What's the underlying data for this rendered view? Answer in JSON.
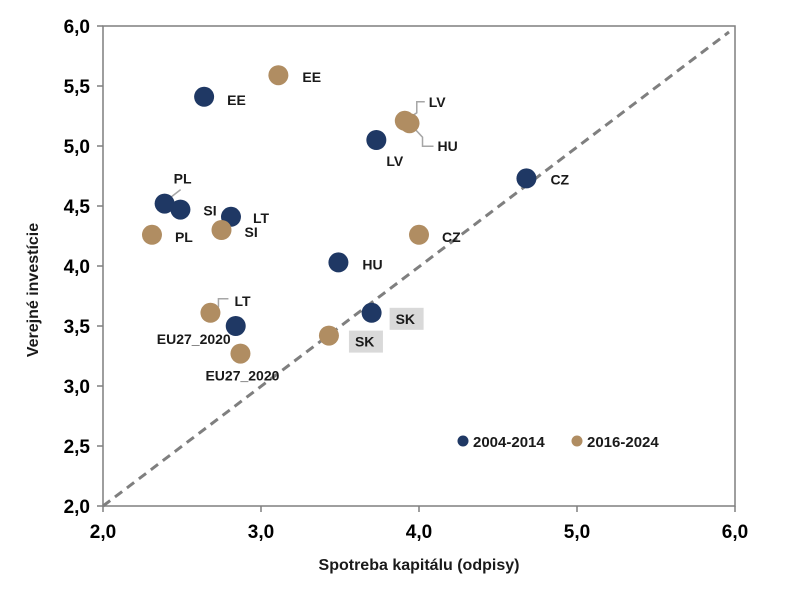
{
  "chart_data": {
    "type": "scatter",
    "xlabel": "Spotreba kapitálu (odpisy)",
    "ylabel": "Verejné investície",
    "xlim": [
      2.0,
      6.0
    ],
    "ylim": [
      2.0,
      6.0
    ],
    "x_ticks": [
      "2,0",
      "3,0",
      "4,0",
      "5,0",
      "6,0"
    ],
    "y_ticks": [
      "2,0",
      "2,5",
      "3,0",
      "3,5",
      "4,0",
      "4,5",
      "5,0",
      "5,5",
      "6,0"
    ],
    "reference_line": {
      "type": "diagonal",
      "from": [
        2.0,
        2.0
      ],
      "to": [
        6.0,
        6.0
      ],
      "style": "dashed"
    },
    "legend_position": "bottom-right",
    "series": [
      {
        "name": "2004-2014",
        "color": "#1f3864",
        "points": [
          {
            "label": "EE",
            "x": 2.64,
            "y": 5.41
          },
          {
            "label": "LV",
            "x": 3.73,
            "y": 5.05
          },
          {
            "label": "CZ",
            "x": 4.68,
            "y": 4.73
          },
          {
            "label": "PL",
            "x": 2.39,
            "y": 4.52
          },
          {
            "label": "SI",
            "x": 2.49,
            "y": 4.47
          },
          {
            "label": "LT",
            "x": 2.81,
            "y": 4.41
          },
          {
            "label": "HU",
            "x": 3.49,
            "y": 4.03
          },
          {
            "label": "SK",
            "x": 3.7,
            "y": 3.61
          },
          {
            "label": "EU27_2020",
            "x": 2.84,
            "y": 3.5
          }
        ]
      },
      {
        "name": "2016-2024",
        "color": "#b08d62",
        "points": [
          {
            "label": "EE",
            "x": 3.11,
            "y": 5.59
          },
          {
            "label": "LV",
            "x": 3.91,
            "y": 5.21
          },
          {
            "label": "HU",
            "x": 3.94,
            "y": 5.19
          },
          {
            "label": "PL",
            "x": 2.31,
            "y": 4.26
          },
          {
            "label": "SI",
            "x": 2.75,
            "y": 4.3
          },
          {
            "label": "CZ",
            "x": 4.0,
            "y": 4.26
          },
          {
            "label": "LT",
            "x": 2.68,
            "y": 3.61
          },
          {
            "label": "SK",
            "x": 3.43,
            "y": 3.42
          },
          {
            "label": "EU27_2020",
            "x": 2.87,
            "y": 3.27
          }
        ]
      }
    ]
  }
}
